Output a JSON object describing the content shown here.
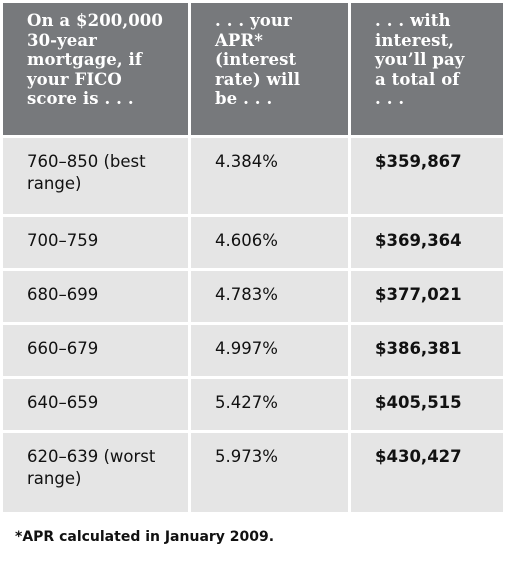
{
  "headers": [
    "On a $200,000\n30-year\nmortgage, if\nyour FICO\nscore is . . .",
    ". . . your\nAPR*\n(interest\nrate) will\nbe . . .",
    ". . . with\ninterest,\nyou’ll pay\na total of\n. . ."
  ],
  "rows": [
    {
      "score": "760–850 (best range)",
      "apr": "4.384%",
      "total": "$359,867"
    },
    {
      "score": "700–759",
      "apr": "4.606%",
      "total": "$369,364"
    },
    {
      "score": "680–699",
      "apr": "4.783%",
      "total": "$377,021"
    },
    {
      "score": "660–679",
      "apr": "4.997%",
      "total": "$386,381"
    },
    {
      "score": "640–659",
      "apr": "5.427%",
      "total": "$405,515"
    },
    {
      "score": "620–639 (worst range)",
      "apr": "5.973%",
      "total": "$430,427"
    }
  ],
  "footnote": "*APR calculated in January 2009.",
  "colors": {
    "header_bg": "#77797c",
    "cell_bg": "#e5e5e5"
  }
}
